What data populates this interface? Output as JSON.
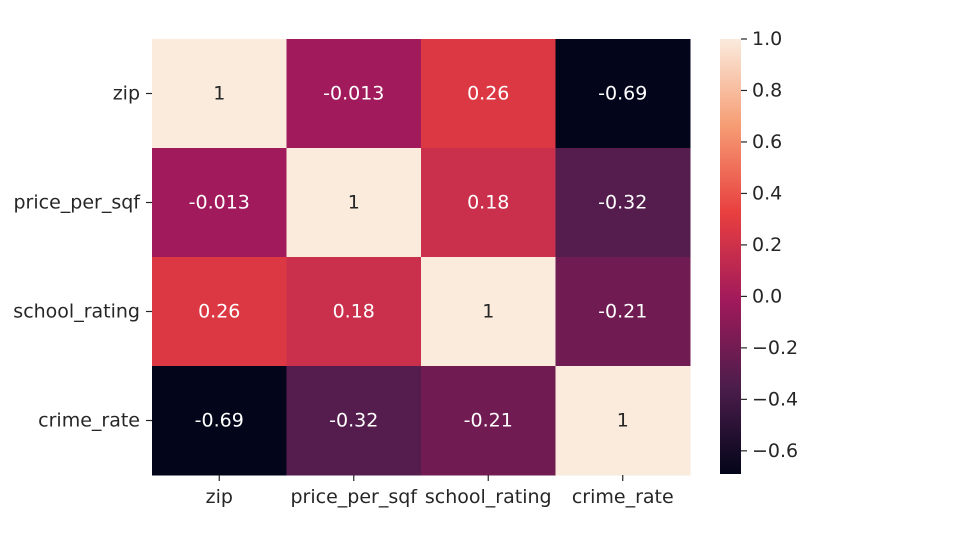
{
  "chart_data": {
    "type": "heatmap",
    "title": "",
    "xlabel": "",
    "ylabel": "",
    "rows": [
      "zip",
      "price_per_sqf",
      "school_rating",
      "crime_rate"
    ],
    "columns": [
      "zip",
      "price_per_sqf",
      "school_rating",
      "crime_rate"
    ],
    "values": [
      [
        1,
        -0.013,
        0.26,
        -0.69
      ],
      [
        -0.013,
        1,
        0.18,
        -0.32
      ],
      [
        0.26,
        0.18,
        1,
        -0.21
      ],
      [
        -0.69,
        -0.32,
        -0.21,
        1
      ]
    ],
    "annotations": [
      [
        "1",
        "-0.013",
        "0.26",
        "-0.69"
      ],
      [
        "-0.013",
        "1",
        "0.18",
        "-0.32"
      ],
      [
        "0.26",
        "0.18",
        "1",
        "-0.21"
      ],
      [
        "-0.69",
        "-0.32",
        "-0.21",
        "1"
      ]
    ],
    "colorbar": {
      "min": -0.69,
      "max": 1.0,
      "ticks": [
        1.0,
        0.8,
        0.6,
        0.4,
        0.2,
        0.0,
        -0.2,
        -0.4,
        -0.6
      ],
      "tick_labels": [
        "1.0",
        "0.8",
        "0.6",
        "0.4",
        "0.2",
        "0.0",
        "−0.2",
        "−0.4",
        "−0.6"
      ],
      "colormap": "rocket",
      "colormap_stops": [
        "#03051a",
        "#4c1d4b",
        "#a11a5b",
        "#e83f3f",
        "#f69c73",
        "#faebdd"
      ]
    },
    "grid": false,
    "legend": "none"
  }
}
